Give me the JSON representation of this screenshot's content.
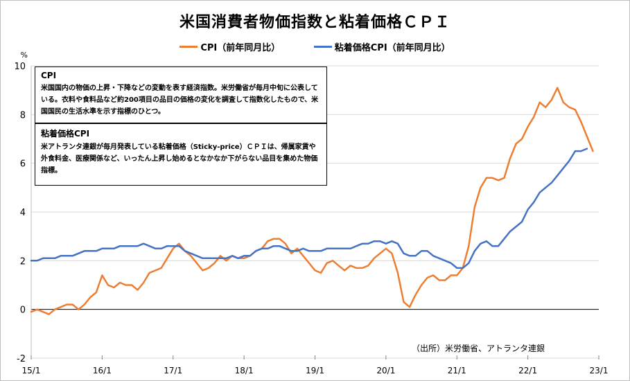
{
  "title": "米国消費者物価指数と粘着価格ＣＰＩ",
  "legend": {
    "cpi": "CPI（前年同月比）",
    "sticky": "粘着価格CPI（前年同月比）"
  },
  "notes": {
    "cpi_title": "CPI",
    "cpi_body": "米国国内の物価の上昇・下降などの変動を表す経済指数。米労働省が毎月中旬に公表している。衣料や食料品など約200項目の品目の価格の変化を調査して指数化したもので、米国国民の生活水準を示す指標のひとつ。",
    "sticky_title": "粘着価格CPI",
    "sticky_body": "米アトランタ連銀が毎月発表している粘着価格（Sticky-price）ＣＰＩは、帰属家賃や外食料金、医療関係など、いったん上昇し始めるとなかなか下がらない品目を集めた物価指標。"
  },
  "source": "（出所）米労働省、アトランタ連銀",
  "colors": {
    "cpi": "#ed7d31",
    "sticky": "#4472c4",
    "grid": "#d9d9d9"
  },
  "chart_data": {
    "type": "line",
    "yunit": "%",
    "ylim": [
      -2,
      10
    ],
    "yticks": [
      -2,
      0,
      2,
      4,
      6,
      8,
      10
    ],
    "xtick_labels": [
      "15/1",
      "16/1",
      "17/1",
      "18/1",
      "19/1",
      "20/1",
      "21/1",
      "22/1",
      "23/1"
    ],
    "x_start": "2015-01",
    "grid": "horizontal",
    "legend_position": "top",
    "series": [
      {
        "name": "CPI（前年同月比）",
        "values": [
          -0.1,
          0.0,
          -0.1,
          -0.2,
          0.0,
          0.1,
          0.2,
          0.2,
          0.0,
          0.2,
          0.5,
          0.7,
          1.4,
          1.0,
          0.9,
          1.1,
          1.0,
          1.0,
          0.8,
          1.1,
          1.5,
          1.6,
          1.7,
          2.1,
          2.5,
          2.7,
          2.4,
          2.2,
          1.9,
          1.6,
          1.7,
          1.9,
          2.2,
          2.0,
          2.2,
          2.1,
          2.1,
          2.2,
          2.4,
          2.5,
          2.8,
          2.9,
          2.9,
          2.7,
          2.3,
          2.5,
          2.2,
          1.9,
          1.6,
          1.5,
          1.9,
          2.0,
          1.8,
          1.6,
          1.8,
          1.7,
          1.7,
          1.8,
          2.1,
          2.3,
          2.5,
          2.3,
          1.5,
          0.3,
          0.1,
          0.6,
          1.0,
          1.3,
          1.4,
          1.2,
          1.2,
          1.4,
          1.4,
          1.7,
          2.6,
          4.2,
          5.0,
          5.4,
          5.4,
          5.3,
          5.4,
          6.2,
          6.8,
          7.0,
          7.5,
          7.9,
          8.5,
          8.3,
          8.6,
          9.1,
          8.5,
          8.3,
          8.2,
          7.7,
          7.1,
          6.5
        ]
      },
      {
        "name": "粘着価格CPI（前年同月比）",
        "values": [
          2.0,
          2.0,
          2.1,
          2.1,
          2.1,
          2.2,
          2.2,
          2.2,
          2.3,
          2.4,
          2.4,
          2.4,
          2.5,
          2.5,
          2.5,
          2.6,
          2.6,
          2.6,
          2.6,
          2.7,
          2.6,
          2.5,
          2.5,
          2.6,
          2.6,
          2.6,
          2.4,
          2.3,
          2.2,
          2.1,
          2.1,
          2.1,
          2.1,
          2.1,
          2.2,
          2.1,
          2.2,
          2.2,
          2.4,
          2.5,
          2.5,
          2.6,
          2.6,
          2.5,
          2.4,
          2.4,
          2.5,
          2.4,
          2.4,
          2.4,
          2.5,
          2.5,
          2.5,
          2.5,
          2.5,
          2.6,
          2.7,
          2.7,
          2.8,
          2.8,
          2.7,
          2.8,
          2.7,
          2.3,
          2.2,
          2.2,
          2.4,
          2.4,
          2.2,
          2.1,
          2.0,
          1.9,
          1.7,
          1.7,
          1.9,
          2.4,
          2.7,
          2.8,
          2.6,
          2.6,
          2.9,
          3.2,
          3.4,
          3.6,
          4.1,
          4.4,
          4.8,
          5.0,
          5.2,
          5.5,
          5.8,
          6.1,
          6.5,
          6.5,
          6.6
        ]
      }
    ]
  }
}
